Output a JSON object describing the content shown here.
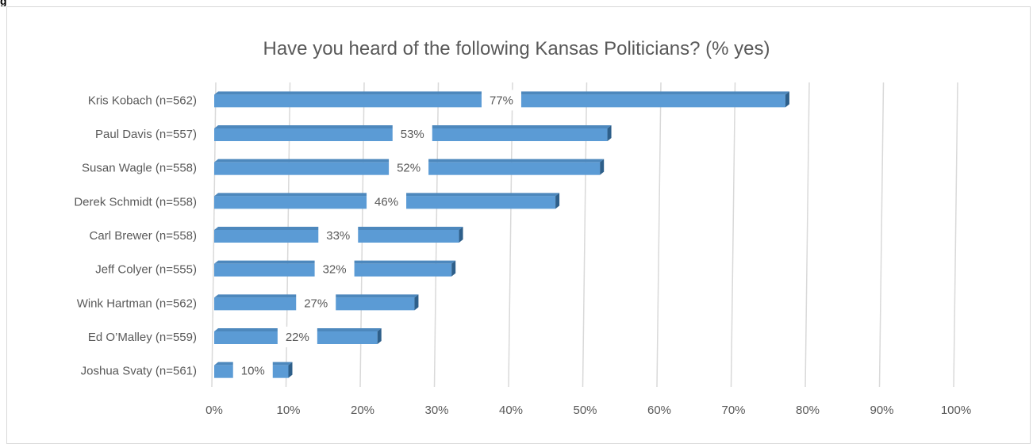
{
  "corner_text": "g",
  "chart_data": {
    "type": "bar",
    "orientation": "horizontal",
    "title": "Have you heard of the following Kansas Politicians? (% yes)",
    "categories": [
      "Kris Kobach (n=562)",
      "Paul Davis (n=557)",
      "Susan Wagle (n=558)",
      "Derek Schmidt (n=558)",
      "Carl Brewer (n=558)",
      "Jeff Colyer (n=555)",
      "Wink Hartman (n=562)",
      "Ed O’Malley (n=559)",
      "Joshua Svaty (n=561)"
    ],
    "values": [
      77,
      53,
      52,
      46,
      33,
      32,
      27,
      22,
      10
    ],
    "data_labels": [
      "77%",
      "53%",
      "52%",
      "46%",
      "33%",
      "32%",
      "27%",
      "22%",
      "10%"
    ],
    "x_ticks": [
      "0%",
      "10%",
      "20%",
      "30%",
      "40%",
      "50%",
      "60%",
      "70%",
      "80%",
      "90%",
      "100%"
    ],
    "xlim": [
      0,
      100
    ],
    "grid": "vertical",
    "legend": "none",
    "colors": {
      "bar": "#5b9bd5",
      "bar_top": "#4d88bd",
      "bar_side": "#2e5f8a",
      "grid": "#d9d9d9",
      "text": "#595959"
    }
  }
}
